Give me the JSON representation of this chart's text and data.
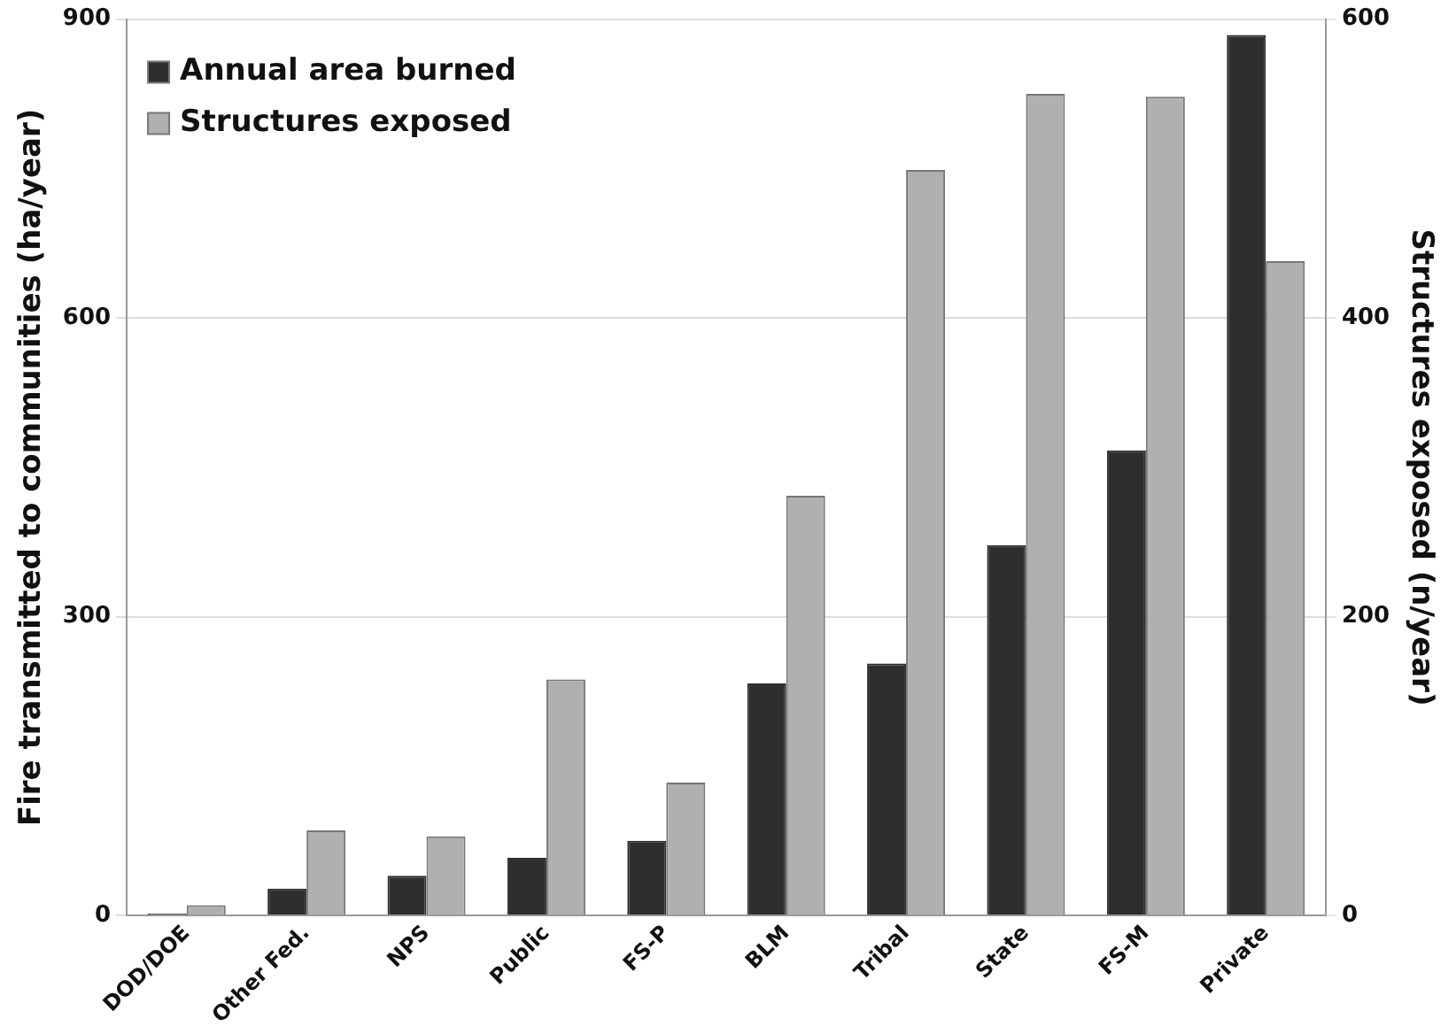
{
  "chart_data": {
    "type": "bar",
    "xlabel": null,
    "ylabel": "Fire transmitted to communities (ha/year)",
    "y2label": "Structures exposed (n/year)",
    "categories": [
      "DOD/DOE",
      "Other Fed.",
      "NPS",
      "Public",
      "FS-P",
      "BLM",
      "Tribal",
      "State",
      "FS-M",
      "Private"
    ],
    "series": [
      {
        "name": "Annual area burned",
        "color": "#2e2e2e",
        "values": [
          2,
          27,
          40,
          58,
          75,
          233,
          253,
          372,
          467,
          884
        ]
      },
      {
        "name": "Structures exposed",
        "color": "#b0b0b0",
        "axis": "y2",
        "values": [
          7,
          57,
          53,
          158,
          89,
          281,
          499,
          550,
          548,
          438
        ]
      }
    ],
    "ylim": [
      0,
      900
    ],
    "yticks": [
      0,
      300,
      600,
      900
    ],
    "y2lim": [
      0,
      600
    ],
    "y2ticks": [
      0,
      200,
      400,
      600
    ],
    "grid": "y",
    "legend": "top left"
  }
}
